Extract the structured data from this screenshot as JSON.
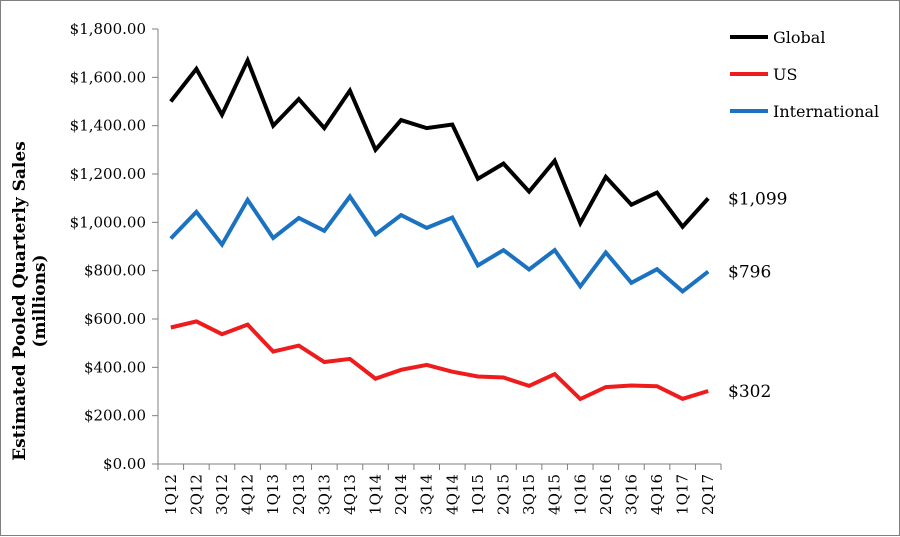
{
  "chart_data": {
    "type": "line",
    "ylabel_lines": [
      "Estimated Pooled Quarterly Sales",
      "(millions)"
    ],
    "xlabel": "",
    "ylim": [
      0,
      1800
    ],
    "ytick_step": 200,
    "yticks": [
      "$0.00",
      "$200.00",
      "$400.00",
      "$600.00",
      "$800.00",
      "$1,000.00",
      "$1,200.00",
      "$1,400.00",
      "$1,600.00",
      "$1,800.00"
    ],
    "grid": false,
    "legend_position": "top-right",
    "categories": [
      "1Q12",
      "2Q12",
      "3Q12",
      "4Q12",
      "1Q13",
      "2Q13",
      "3Q13",
      "4Q13",
      "1Q14",
      "2Q14",
      "3Q14",
      "4Q14",
      "1Q15",
      "2Q15",
      "3Q15",
      "4Q15",
      "1Q16",
      "2Q16",
      "3Q16",
      "4Q16",
      "1Q17",
      "2Q17"
    ],
    "series": [
      {
        "name": "Global",
        "color": "#000000",
        "end_label": "$1,099",
        "values": [
          1500,
          1635,
          1445,
          1670,
          1400,
          1510,
          1390,
          1545,
          1300,
          1423,
          1390,
          1405,
          1180,
          1243,
          1127,
          1255,
          997,
          1188,
          1073,
          1123,
          982,
          1099
        ]
      },
      {
        "name": "US",
        "color": "#ee1c1c",
        "end_label": "$302",
        "values": [
          565,
          590,
          537,
          577,
          465,
          490,
          422,
          435,
          353,
          390,
          410,
          382,
          362,
          358,
          323,
          372,
          269,
          318,
          325,
          322,
          270,
          302
        ]
      },
      {
        "name": "International",
        "color": "#1a72c0",
        "end_label": "$796",
        "values": [
          933,
          1043,
          908,
          1093,
          935,
          1018,
          965,
          1107,
          950,
          1030,
          977,
          1020,
          822,
          885,
          805,
          885,
          735,
          875,
          750,
          806,
          714,
          796
        ]
      }
    ]
  }
}
